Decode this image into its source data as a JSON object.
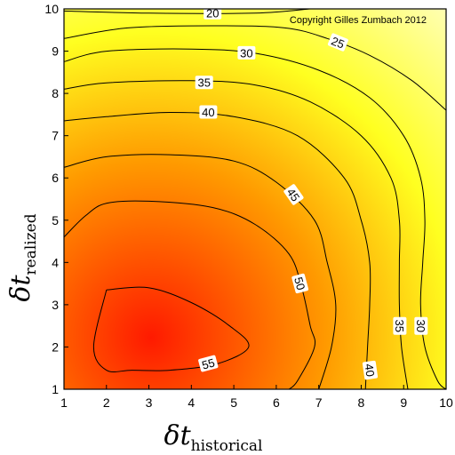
{
  "chart_data": {
    "type": "contour",
    "xlabel_main": "δt",
    "xlabel_sub": "historical",
    "ylabel_main": "δt",
    "ylabel_sub": "realized",
    "xlim": [
      1,
      10
    ],
    "ylim": [
      1,
      10
    ],
    "x_ticks": [
      "1",
      "2",
      "3",
      "4",
      "5",
      "6",
      "7",
      "8",
      "9",
      "10"
    ],
    "y_ticks": [
      "1",
      "2",
      "3",
      "4",
      "5",
      "6",
      "7",
      "8",
      "9",
      "10"
    ],
    "annotation": "Copyright Gilles Zumbach 2012",
    "colormap": {
      "high": "#ff1a00",
      "mid": "#ff9a00",
      "low": "#ffff20",
      "lowest": "#ffffc8"
    },
    "contours": [
      {
        "level": "20",
        "points": [
          [
            1.0,
            9.95
          ],
          [
            3.0,
            9.9
          ],
          [
            5.5,
            9.9
          ],
          [
            6.8,
            10.0
          ]
        ]
      },
      {
        "level": "25",
        "points": [
          [
            1.0,
            9.3
          ],
          [
            2.5,
            9.55
          ],
          [
            4.5,
            9.6
          ],
          [
            6.2,
            9.55
          ],
          [
            7.2,
            9.3
          ],
          [
            8.2,
            8.9
          ],
          [
            9.2,
            8.3
          ],
          [
            10.0,
            7.6
          ]
        ]
      },
      {
        "level": "30",
        "points": [
          [
            1.0,
            8.75
          ],
          [
            2.0,
            9.0
          ],
          [
            4.0,
            9.05
          ],
          [
            5.5,
            8.95
          ],
          [
            7.0,
            8.55
          ],
          [
            8.2,
            7.9
          ],
          [
            9.0,
            7.0
          ],
          [
            9.4,
            6.0
          ],
          [
            9.5,
            5.0
          ],
          [
            9.45,
            4.0
          ],
          [
            9.4,
            3.0
          ],
          [
            9.5,
            2.0
          ],
          [
            9.8,
            1.2
          ],
          [
            10.0,
            1.0
          ]
        ]
      },
      {
        "level": "35",
        "points": [
          [
            1.0,
            8.1
          ],
          [
            2.0,
            8.25
          ],
          [
            4.0,
            8.3
          ],
          [
            5.5,
            8.2
          ],
          [
            6.8,
            7.8
          ],
          [
            8.0,
            7.0
          ],
          [
            8.7,
            6.0
          ],
          [
            8.9,
            5.0
          ],
          [
            8.9,
            4.0
          ],
          [
            8.9,
            3.0
          ],
          [
            8.95,
            2.0
          ],
          [
            9.1,
            1.0
          ]
        ]
      },
      {
        "level": "40",
        "points": [
          [
            1.0,
            7.35
          ],
          [
            2.0,
            7.45
          ],
          [
            3.5,
            7.55
          ],
          [
            5.0,
            7.45
          ],
          [
            6.5,
            7.0
          ],
          [
            7.6,
            6.0
          ],
          [
            8.0,
            5.0
          ],
          [
            8.2,
            4.0
          ],
          [
            8.2,
            3.0
          ],
          [
            8.15,
            2.0
          ],
          [
            8.1,
            1.0
          ]
        ]
      },
      {
        "level": "45",
        "points": [
          [
            1.0,
            6.25
          ],
          [
            2.0,
            6.5
          ],
          [
            3.5,
            6.55
          ],
          [
            5.0,
            6.4
          ],
          [
            6.0,
            5.9
          ],
          [
            6.9,
            5.0
          ],
          [
            7.2,
            4.0
          ],
          [
            7.4,
            3.0
          ],
          [
            7.3,
            2.0
          ],
          [
            7.0,
            1.0
          ]
        ]
      },
      {
        "level": "50",
        "points": [
          [
            1.0,
            4.6
          ],
          [
            1.5,
            5.1
          ],
          [
            2.0,
            5.4
          ],
          [
            3.0,
            5.45
          ],
          [
            4.5,
            5.3
          ],
          [
            5.5,
            4.9
          ],
          [
            6.3,
            4.2
          ],
          [
            6.6,
            3.4
          ],
          [
            6.8,
            2.5
          ],
          [
            6.9,
            2.0
          ],
          [
            6.5,
            1.2
          ],
          [
            6.3,
            1.0
          ]
        ]
      },
      {
        "level": "55",
        "points": [
          [
            2.0,
            3.35
          ],
          [
            3.0,
            3.4
          ],
          [
            4.0,
            3.05
          ],
          [
            4.9,
            2.5
          ],
          [
            5.35,
            2.0
          ],
          [
            4.6,
            1.6
          ],
          [
            3.5,
            1.45
          ],
          [
            2.6,
            1.45
          ],
          [
            2.0,
            1.45
          ],
          [
            1.7,
            2.0
          ],
          [
            2.0,
            3.35
          ]
        ]
      }
    ],
    "contour_labels": [
      {
        "text": "20",
        "x": 4.5,
        "y": 9.9,
        "rot": 0
      },
      {
        "text": "25",
        "x": 7.45,
        "y": 9.2,
        "rot": 22
      },
      {
        "text": "30",
        "x": 5.3,
        "y": 8.95,
        "rot": 0
      },
      {
        "text": "30",
        "x": 9.4,
        "y": 2.5,
        "rot": 90
      },
      {
        "text": "35",
        "x": 4.3,
        "y": 8.25,
        "rot": 0
      },
      {
        "text": "35",
        "x": 8.9,
        "y": 2.5,
        "rot": 90
      },
      {
        "text": "40",
        "x": 4.4,
        "y": 7.55,
        "rot": 0
      },
      {
        "text": "40",
        "x": 8.2,
        "y": 1.45,
        "rot": 82
      },
      {
        "text": "45",
        "x": 6.4,
        "y": 5.6,
        "rot": 55
      },
      {
        "text": "50",
        "x": 6.55,
        "y": 3.5,
        "rot": 75
      },
      {
        "text": "55",
        "x": 4.4,
        "y": 1.6,
        "rot": -15
      }
    ]
  }
}
